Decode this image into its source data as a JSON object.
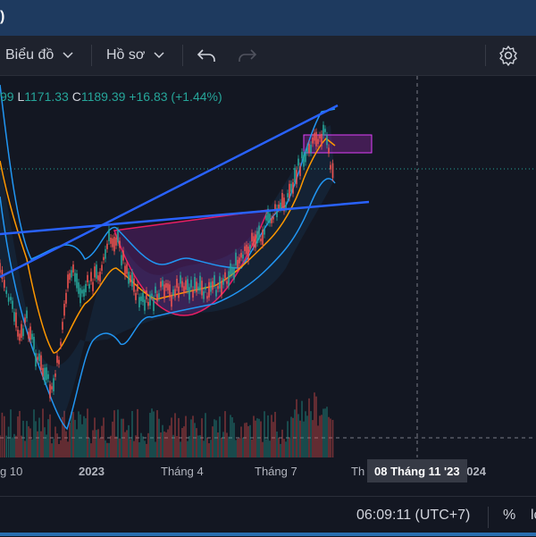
{
  "window": {
    "title_fragment": ")"
  },
  "toolbar": {
    "chart_menu_label": "Biểu đồ",
    "profile_menu_label": "Hồ sơ"
  },
  "legend": {
    "high_partial": "99",
    "low_label": "L",
    "low_value": "1171.33",
    "close_label": "C",
    "close_value": "1189.39",
    "change": "+16.83 (+1.44%)"
  },
  "time_axis": {
    "labels": [
      "g 10",
      "2023",
      "Tháng 4",
      "Tháng 7",
      "Th",
      "2024"
    ],
    "crosshair_label": "08 Tháng 11 '23"
  },
  "status_bar": {
    "clock": "06:09:11 (UTC+7)",
    "percent_label": "%",
    "log_label": "lo"
  },
  "colors": {
    "background": "#131722",
    "up": "#26a69a",
    "down": "#ef5350",
    "trendline": "#2962ff",
    "bollinger": "#2196f3",
    "ma": "#ff9800",
    "pattern_fill": "#9c27b0"
  }
}
